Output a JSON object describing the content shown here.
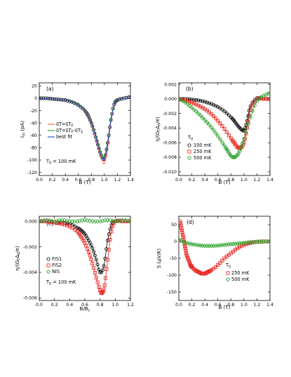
{
  "chart_data": [
    {
      "type": "scatter",
      "panel_label": "(a)",
      "xlabel": "B (T)",
      "ylabel_main": "I",
      "ylabel_sub": "th",
      "ylabel_tail": " (pA)",
      "xlim": [
        0,
        1.4
      ],
      "ylim": [
        -125,
        25
      ],
      "xticks": [
        "0.0",
        "0.2",
        "0.4",
        "0.6",
        "0.8",
        "1.0",
        "1.2",
        "1.4"
      ],
      "yticks": [
        "20",
        "0",
        "-20",
        "-40",
        "-60",
        "-80",
        "-100",
        "-120"
      ],
      "annotation": {
        "main": "T",
        "sub": "0",
        "tail": " = 100 mK"
      },
      "legend": [
        {
          "main": "δT=δT",
          "sub": "F",
          "tail": "",
          "color": "#ff5a5a"
        },
        {
          "main": "δT=δT",
          "sub": "F",
          "tail": "-δT",
          "sub2": "S",
          "color": "#2ca02c"
        },
        {
          "main": "best fit",
          "sub": "",
          "tail": "",
          "color": "#1f3fd1"
        }
      ],
      "series": [
        {
          "kind": "points",
          "color": "#000000",
          "marker": "circle",
          "x": [
            0.0,
            0.1,
            0.2,
            0.3,
            0.4,
            0.5,
            0.6,
            0.7,
            0.75,
            0.8,
            0.85,
            0.9,
            0.95,
            1.0,
            1.05,
            1.1,
            1.15,
            1.2,
            1.3,
            1.4
          ],
          "y": [
            0,
            0,
            -1,
            -2,
            -3,
            -6,
            -11,
            -20,
            -28,
            -40,
            -57,
            -75,
            -92,
            -98,
            -72,
            -35,
            -10,
            -3,
            0,
            2
          ]
        },
        {
          "kind": "line",
          "color": "#ff5a5a",
          "x": [
            0.0,
            0.2,
            0.4,
            0.5,
            0.6,
            0.7,
            0.8,
            0.85,
            0.9,
            0.95,
            1.0,
            1.05,
            1.1,
            1.15,
            1.2,
            1.3,
            1.4
          ],
          "y": [
            0,
            -1,
            -3,
            -6,
            -11,
            -21,
            -42,
            -58,
            -78,
            -95,
            -106,
            -80,
            -38,
            -12,
            -3,
            0,
            0
          ]
        },
        {
          "kind": "line",
          "color": "#2ca02c",
          "x": [
            0.0,
            0.2,
            0.4,
            0.5,
            0.6,
            0.7,
            0.8,
            0.85,
            0.9,
            0.95,
            1.0,
            1.05,
            1.1,
            1.15,
            1.2,
            1.3,
            1.4
          ],
          "y": [
            0,
            -1,
            -3,
            -5,
            -10,
            -19,
            -38,
            -54,
            -72,
            -88,
            -95,
            -70,
            -33,
            -10,
            -2,
            0,
            0
          ]
        },
        {
          "kind": "line",
          "color": "#1f3fd1",
          "x": [
            0.0,
            0.2,
            0.4,
            0.5,
            0.6,
            0.7,
            0.8,
            0.85,
            0.9,
            0.95,
            1.0,
            1.05,
            1.1,
            1.15,
            1.2,
            1.3,
            1.4
          ],
          "y": [
            0,
            -1,
            -3,
            -6,
            -11,
            -20,
            -40,
            -56,
            -75,
            -92,
            -99,
            -74,
            -36,
            -11,
            -3,
            0,
            0
          ]
        }
      ]
    },
    {
      "type": "scatter",
      "panel_label": "(b)",
      "xlabel": "B (T)",
      "ylabel_main": "η/(G",
      "ylabel_sub": "T",
      "ylabel_tail": "Δ",
      "ylabel_sub2": "0",
      "ylabel_end": "/e)",
      "xlim": [
        0,
        1.4
      ],
      "ylim": [
        -0.0105,
        0.0022
      ],
      "xticks": [
        "0.0",
        "0.2",
        "0.4",
        "0.6",
        "0.8",
        "1.0",
        "1.2",
        "1.4"
      ],
      "yticks": [
        "0.002",
        "0.000",
        "-0.002",
        "-0.004",
        "-0.006",
        "-0.008",
        "-0.010"
      ],
      "legend_title": {
        "main": "T",
        "sub": "0"
      },
      "legend": [
        {
          "label": "100 mK",
          "color": "#000000",
          "marker": "circle"
        },
        {
          "label": "250 mK",
          "color": "#e8201a",
          "marker": "square"
        },
        {
          "label": "500 mK",
          "color": "#2ca02c",
          "marker": "diamond"
        }
      ],
      "series": [
        {
          "name": "100 mK",
          "color": "#000000",
          "marker": "circle",
          "x": [
            0.0,
            0.1,
            0.2,
            0.3,
            0.4,
            0.5,
            0.6,
            0.7,
            0.8,
            0.85,
            0.9,
            0.95,
            1.0,
            1.05,
            1.1,
            1.2,
            1.3,
            1.4
          ],
          "y": [
            0,
            0,
            -0.0001,
            -0.0002,
            -0.0004,
            -0.0007,
            -0.0011,
            -0.0017,
            -0.0025,
            -0.003,
            -0.0036,
            -0.0041,
            -0.0043,
            -0.003,
            -0.001,
            0.0001,
            0,
            0
          ],
          "fit": true
        },
        {
          "name": "250 mK",
          "color": "#e8201a",
          "marker": "square",
          "x": [
            0.0,
            0.1,
            0.2,
            0.3,
            0.4,
            0.5,
            0.6,
            0.7,
            0.8,
            0.85,
            0.9,
            0.95,
            1.0,
            1.05,
            1.1,
            1.2,
            1.3,
            1.4
          ],
          "y": [
            0,
            -0.0002,
            -0.0005,
            -0.0009,
            -0.0014,
            -0.0021,
            -0.003,
            -0.0041,
            -0.0054,
            -0.006,
            -0.0066,
            -0.0067,
            -0.006,
            -0.004,
            -0.0015,
            0,
            0,
            0
          ],
          "fit": true
        },
        {
          "name": "500 mK",
          "color": "#2ca02c",
          "marker": "diamond",
          "x": [
            0.0,
            0.1,
            0.2,
            0.3,
            0.4,
            0.5,
            0.6,
            0.7,
            0.75,
            0.8,
            0.85,
            0.9,
            0.95,
            1.0,
            1.1,
            1.2,
            1.3,
            1.4
          ],
          "y": [
            0,
            -0.0005,
            -0.0012,
            -0.002,
            -0.0029,
            -0.0039,
            -0.0051,
            -0.0064,
            -0.0071,
            -0.0078,
            -0.008,
            -0.0077,
            -0.0068,
            -0.0055,
            -0.0025,
            -0.0003,
            0.0004,
            0.0008
          ],
          "fit": true
        }
      ]
    },
    {
      "type": "scatter",
      "panel_label": "(c)",
      "xlabel_main": "B/B",
      "xlabel_sub": "c",
      "ylabel_main": "η/(G",
      "ylabel_sub": "T",
      "ylabel_tail": "Δ",
      "ylabel_sub2": "0",
      "ylabel_end": "/e)",
      "xlim": [
        0,
        1.2
      ],
      "ylim": [
        -0.0062,
        0.0004
      ],
      "xticks": [
        "0.0",
        "0.2",
        "0.4",
        "0.6",
        "0.8",
        "1.0",
        "1.2"
      ],
      "yticks": [
        "0.000",
        "-0.002",
        "-0.004",
        "-0.006"
      ],
      "annotation": {
        "main": "T",
        "sub": "0",
        "tail": " = 100 mK"
      },
      "legend": [
        {
          "label": "FIS1",
          "color": "#000000",
          "marker": "circle"
        },
        {
          "label": "FIS2",
          "color": "#e8201a",
          "marker": "square"
        },
        {
          "label": "NIS",
          "color": "#2ca02c",
          "marker": "diamond"
        }
      ],
      "series": [
        {
          "name": "FIS1",
          "color": "#000000",
          "marker": "circle",
          "x": [
            0.0,
            0.1,
            0.2,
            0.3,
            0.4,
            0.5,
            0.55,
            0.6,
            0.65,
            0.7,
            0.75,
            0.8,
            0.85,
            0.9,
            0.95,
            1.0,
            1.1,
            1.2
          ],
          "y": [
            0,
            0,
            -0.0001,
            -0.0001,
            -0.0002,
            -0.0005,
            -0.0007,
            -0.001,
            -0.0015,
            -0.0021,
            -0.003,
            -0.004,
            -0.0035,
            -0.0015,
            -0.0003,
            0,
            0,
            0
          ],
          "fit": true
        },
        {
          "name": "FIS2",
          "color": "#e8201a",
          "marker": "square",
          "x": [
            0.0,
            0.1,
            0.2,
            0.3,
            0.4,
            0.5,
            0.55,
            0.6,
            0.65,
            0.7,
            0.75,
            0.8,
            0.83,
            0.86,
            0.9,
            0.95,
            1.0,
            1.1,
            1.2
          ],
          "y": [
            0,
            0,
            -0.0001,
            -0.0002,
            -0.0004,
            -0.0008,
            -0.0012,
            -0.0017,
            -0.0024,
            -0.0033,
            -0.0044,
            -0.0054,
            -0.0056,
            -0.005,
            -0.003,
            -0.0008,
            0,
            0,
            0
          ],
          "fit": true
        },
        {
          "name": "NIS",
          "color": "#2ca02c",
          "marker": "diamond",
          "x": [
            0.0,
            0.1,
            0.2,
            0.3,
            0.4,
            0.5,
            0.6,
            0.7,
            0.8,
            0.9,
            1.0,
            1.1,
            1.2
          ],
          "y": [
            0,
            0.0001,
            0,
            0.0001,
            0,
            0,
            0.0001,
            0,
            0,
            0.0001,
            0,
            0.0001,
            0
          ],
          "fit": false
        }
      ]
    },
    {
      "type": "scatter",
      "panel_label": "(d)",
      "xlabel": "B (T)",
      "ylabel": "S (μV/K)",
      "xlim": [
        0,
        1.4
      ],
      "ylim": [
        -175,
        75
      ],
      "xticks": [
        "0.0",
        "0.2",
        "0.4",
        "0.6",
        "0.8",
        "1.0",
        "1.2",
        "1.4"
      ],
      "yticks": [
        "50",
        "0",
        "-50",
        "-100",
        "-150"
      ],
      "legend_title": {
        "main": "T",
        "sub": "0"
      },
      "legend": [
        {
          "label": "250 mK",
          "color": "#e8201a",
          "marker": "square"
        },
        {
          "label": "500 mK",
          "color": "#2ca02c",
          "marker": "diamond"
        }
      ],
      "series": [
        {
          "name": "250 mK",
          "color": "#e8201a",
          "marker": "square",
          "x": [
            0.02,
            0.04,
            0.06,
            0.08,
            0.1,
            0.12,
            0.15,
            0.18,
            0.2,
            0.25,
            0.3,
            0.35,
            0.4,
            0.45,
            0.5,
            0.6,
            0.7,
            0.8,
            0.9,
            1.0,
            1.1,
            1.2,
            1.3,
            1.4
          ],
          "y": [
            60,
            40,
            20,
            0,
            -20,
            -40,
            -55,
            -70,
            -75,
            -85,
            -90,
            -95,
            -95,
            -90,
            -85,
            -70,
            -50,
            -35,
            -20,
            -10,
            -4,
            -1,
            0,
            0
          ],
          "fit": true
        },
        {
          "name": "500 mK",
          "color": "#2ca02c",
          "marker": "diamond",
          "x": [
            0.0,
            0.1,
            0.2,
            0.3,
            0.4,
            0.5,
            0.6,
            0.7,
            0.8,
            0.9,
            1.0,
            1.1,
            1.2,
            1.3,
            1.4
          ],
          "y": [
            5,
            -3,
            -8,
            -11,
            -13,
            -13,
            -12,
            -10,
            -8,
            -6,
            -4,
            -2,
            -1,
            0,
            0
          ],
          "fit": true
        }
      ]
    }
  ]
}
